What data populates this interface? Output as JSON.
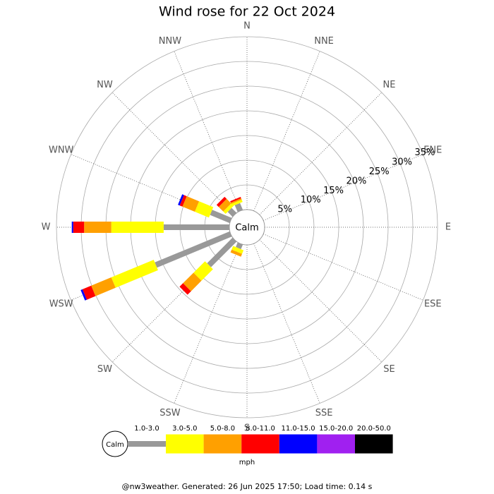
{
  "chart_data": {
    "type": "windrose",
    "title": "Wind rose for 22 Oct 2024",
    "directions": [
      "N",
      "NNE",
      "NE",
      "ENE",
      "E",
      "ESE",
      "SE",
      "SSE",
      "S",
      "SSW",
      "SW",
      "WSW",
      "W",
      "WNW",
      "NW",
      "NNW"
    ],
    "series": [
      {
        "name": "1.0-3.0",
        "color": "#999999",
        "values": [
          0,
          0,
          0,
          0,
          0,
          0,
          0,
          0,
          0,
          1.0,
          7.3,
          16.4,
          13.3,
          4.3,
          1.4,
          1.5
        ]
      },
      {
        "name": "3.0-5.0",
        "color": "#ffff00",
        "values": [
          0,
          0,
          0,
          0,
          0,
          0,
          0,
          0,
          0,
          0.8,
          3.3,
          9.3,
          10.6,
          3.1,
          0.7,
          0.5
        ]
      },
      {
        "name": "5.0-8.0",
        "color": "#ffa000",
        "values": [
          0,
          0,
          0,
          0,
          0,
          0,
          0,
          0,
          0,
          0.6,
          3.0,
          4.4,
          5.5,
          2.7,
          1.3,
          0.3
        ]
      },
      {
        "name": "8.0-11.0",
        "color": "#ff0000",
        "values": [
          0,
          0,
          0,
          0,
          0,
          0,
          0,
          0,
          0,
          0,
          1.0,
          1.9,
          2.2,
          0.6,
          0.6,
          0.3
        ]
      },
      {
        "name": "11.0-15.0",
        "color": "#0000ff",
        "values": [
          0,
          0,
          0,
          0,
          0,
          0,
          0,
          0,
          0,
          0,
          0,
          0.4,
          0.3,
          0.4,
          0,
          0
        ]
      },
      {
        "name": "15.0-20.0",
        "color": "#a020f0",
        "values": [
          0,
          0,
          0,
          0,
          0,
          0,
          0,
          0,
          0,
          0,
          0,
          0,
          0,
          0,
          0,
          0
        ]
      },
      {
        "name": "20.0-50.0",
        "color": "#000000",
        "values": [
          0,
          0,
          0,
          0,
          0,
          0,
          0,
          0,
          0,
          0,
          0,
          0,
          0,
          0,
          0,
          0
        ]
      }
    ],
    "rlim": [
      0,
      35
    ],
    "rticks": [
      {
        "value": 5,
        "label": "5%"
      },
      {
        "value": 10,
        "label": "10%"
      },
      {
        "value": 15,
        "label": "15%"
      },
      {
        "value": 20,
        "label": "20%"
      },
      {
        "value": 25,
        "label": "25%"
      },
      {
        "value": 30,
        "label": "30%"
      },
      {
        "value": 35,
        "label": "35%"
      }
    ],
    "calm_label": "Calm",
    "unit": "mph"
  },
  "footer": "@nw3weather. Generated: 26 Jun 2025 17:50; Load time: 0.14 s"
}
